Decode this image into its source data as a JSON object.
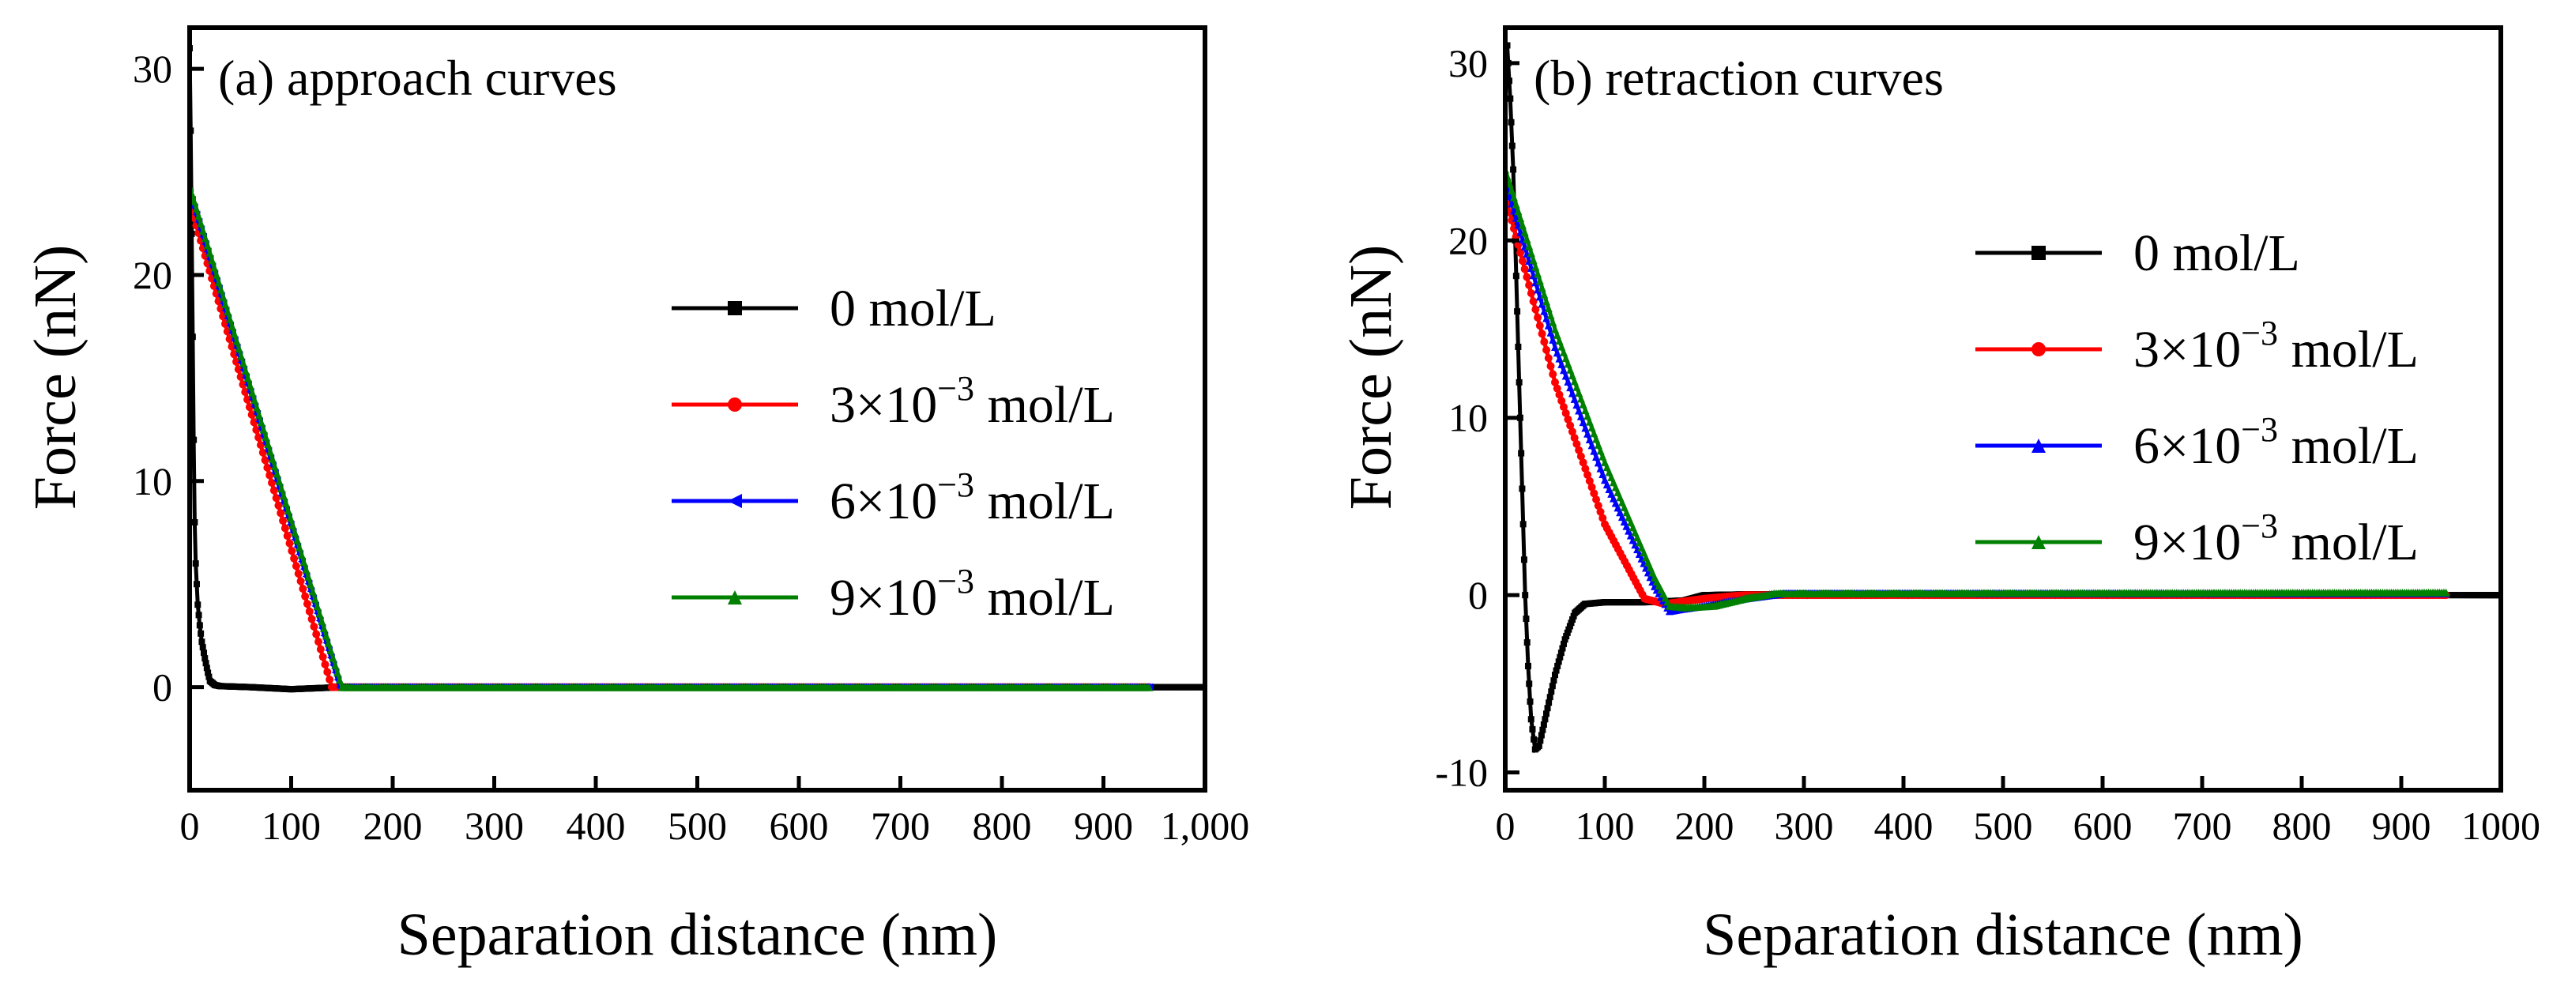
{
  "chart_data": [
    {
      "type": "line",
      "title": "(a) approach curves",
      "xlabel": "Separation distance (nm)",
      "ylabel": "Force (nN)",
      "xlim": [
        0,
        1000
      ],
      "ylim": [
        -5,
        32
      ],
      "xticks": [
        0,
        100,
        200,
        300,
        400,
        500,
        600,
        700,
        800,
        900,
        1000
      ],
      "xtick_labels": [
        "0",
        "100",
        "200",
        "300",
        "400",
        "500",
        "600",
        "700",
        "800",
        "900",
        "1,000"
      ],
      "yticks": [
        0,
        10,
        20,
        30
      ],
      "ytick_labels": [
        "0",
        "10",
        "20",
        "30"
      ],
      "legend_position": "center-right",
      "series": [
        {
          "name": "0 mol/L",
          "label_main": "0 mol/L",
          "label_exp": "",
          "label_unit": "",
          "color": "#000000",
          "marker": "square",
          "points": [
            [
              0,
              31
            ],
            [
              1,
              27
            ],
            [
              2,
              22
            ],
            [
              3,
              17
            ],
            [
              4,
              12
            ],
            [
              5,
              8
            ],
            [
              6,
              6
            ],
            [
              8,
              4
            ],
            [
              10,
              3
            ],
            [
              12,
              2.2
            ],
            [
              15,
              1.4
            ],
            [
              18,
              0.7
            ],
            [
              20,
              0.3
            ],
            [
              25,
              0.1
            ],
            [
              30,
              0.05
            ],
            [
              60,
              0.0
            ],
            [
              100,
              -0.1
            ],
            [
              150,
              0
            ],
            [
              1000,
              0
            ]
          ]
        },
        {
          "name": "3×10-3 mol/L",
          "label_main": "3×10",
          "label_exp": "−3",
          "label_unit": " mol/L",
          "color": "#ff0000",
          "marker": "circle",
          "points": [
            [
              0,
              23.5
            ],
            [
              140,
              0
            ],
            [
              945,
              0
            ]
          ]
        },
        {
          "name": "6×10-3 mol/L",
          "label_main": "6×10",
          "label_exp": "−3",
          "label_unit": " mol/L",
          "color": "#0000ff",
          "marker": "triangle-left",
          "points": [
            [
              0,
              24
            ],
            [
              148,
              0
            ],
            [
              945,
              0
            ]
          ]
        },
        {
          "name": "9×10-3 mol/L",
          "label_main": "9×10",
          "label_exp": "−3",
          "label_unit": " mol/L",
          "color": "#008000",
          "marker": "triangle-up",
          "points": [
            [
              0,
              24.3
            ],
            [
              150,
              0
            ],
            [
              945,
              0
            ]
          ]
        }
      ]
    },
    {
      "type": "line",
      "title": "(b) retraction curves",
      "xlabel": "Separation distance (nm)",
      "ylabel": "Force (nN)",
      "xlim": [
        0,
        1000
      ],
      "ylim": [
        -11,
        32
      ],
      "xticks": [
        0,
        100,
        200,
        300,
        400,
        500,
        600,
        700,
        800,
        900,
        1000
      ],
      "xtick_labels": [
        "0",
        "100",
        "200",
        "300",
        "400",
        "500",
        "600",
        "700",
        "800",
        "900",
        "1000"
      ],
      "yticks": [
        -10,
        0,
        10,
        20,
        30
      ],
      "ytick_labels": [
        "-10",
        "0",
        "10",
        "20",
        "30"
      ],
      "legend_position": "center-right",
      "series": [
        {
          "name": "0 mol/L",
          "label_main": "0 mol/L",
          "label_exp": "",
          "label_unit": "",
          "color": "#000000",
          "marker": "square",
          "points": [
            [
              2,
              31
            ],
            [
              5,
              28
            ],
            [
              8,
              24
            ],
            [
              11,
              18
            ],
            [
              14,
              12
            ],
            [
              17,
              6
            ],
            [
              20,
              0
            ],
            [
              23,
              -4
            ],
            [
              26,
              -7
            ],
            [
              30,
              -8.7
            ],
            [
              34,
              -8.5
            ],
            [
              40,
              -7
            ],
            [
              50,
              -4.5
            ],
            [
              60,
              -2.5
            ],
            [
              70,
              -1
            ],
            [
              80,
              -0.5
            ],
            [
              100,
              -0.4
            ],
            [
              140,
              -0.4
            ],
            [
              180,
              -0.3
            ],
            [
              200,
              0
            ],
            [
              250,
              0.05
            ],
            [
              1000,
              0
            ]
          ]
        },
        {
          "name": "3×10-3 mol/L",
          "label_main": "3×10",
          "label_exp": "−3",
          "label_unit": " mol/L",
          "color": "#ff0000",
          "marker": "circle",
          "points": [
            [
              0,
              22.5
            ],
            [
              50,
              12
            ],
            [
              100,
              4
            ],
            [
              140,
              -0.2
            ],
            [
              160,
              -0.5
            ],
            [
              200,
              -0.2
            ],
            [
              240,
              0
            ],
            [
              945,
              0
            ]
          ]
        },
        {
          "name": "6×10-3 mol/L",
          "label_main": "6×10",
          "label_exp": "−3",
          "label_unit": " mol/L",
          "color": "#0000ff",
          "marker": "triangle-up",
          "points": [
            [
              0,
              23.3
            ],
            [
              50,
              14
            ],
            [
              100,
              6.5
            ],
            [
              150,
              0.5
            ],
            [
              165,
              -0.9
            ],
            [
              175,
              -0.8
            ],
            [
              200,
              -0.6
            ],
            [
              240,
              -0.2
            ],
            [
              280,
              0.1
            ],
            [
              945,
              0.1
            ]
          ]
        },
        {
          "name": "9×10-3 mol/L",
          "label_main": "9×10",
          "label_exp": "−3",
          "label_unit": " mol/L",
          "color": "#008000",
          "marker": "triangle-up",
          "points": [
            [
              0,
              24
            ],
            [
              50,
              15
            ],
            [
              100,
              7.5
            ],
            [
              150,
              1
            ],
            [
              165,
              -0.6
            ],
            [
              180,
              -0.7
            ],
            [
              210,
              -0.6
            ],
            [
              240,
              -0.2
            ],
            [
              270,
              0.1
            ],
            [
              945,
              0.15
            ]
          ]
        }
      ]
    }
  ]
}
